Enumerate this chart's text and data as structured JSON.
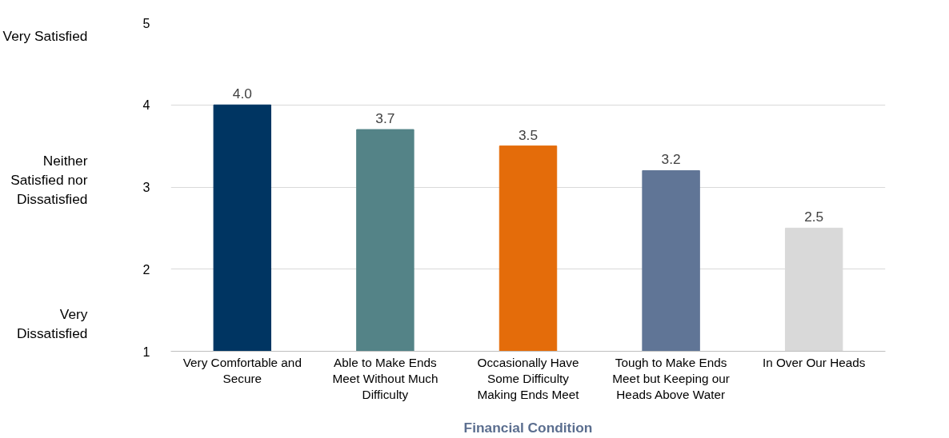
{
  "chart_data": {
    "type": "bar",
    "xlabel": "Financial Condition",
    "categories": [
      "Very Comfortable and Secure",
      "Able to Make Ends Meet Without Much Difficulty",
      "Occasionally Have Some Difficulty Making Ends Meet",
      "Tough to Make Ends Meet but Keeping our Heads Above Water",
      "In Over Our Heads"
    ],
    "values": [
      4.0,
      3.7,
      3.5,
      3.2,
      2.5
    ],
    "colors": [
      "#003562",
      "#548387",
      "#e46c0a",
      "#607596",
      "#d9d9d9"
    ],
    "value_labels": [
      "4.0",
      "3.7",
      "3.5",
      "3.2",
      "2.5"
    ],
    "ylim": [
      1,
      5
    ],
    "yticks": [
      1,
      2,
      3,
      4,
      5
    ],
    "grid": "y",
    "annotations": [
      "Very Satisfied",
      "Neither Satisfied nor Dissatisfied",
      "Very Dissatisfied"
    ]
  }
}
